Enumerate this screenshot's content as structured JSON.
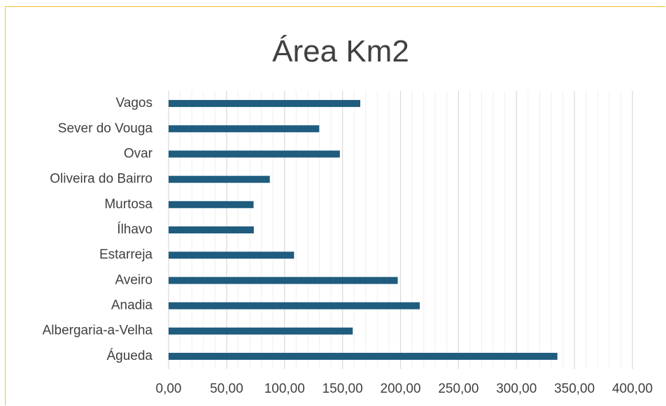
{
  "chart_data": {
    "type": "bar",
    "orientation": "horizontal",
    "title": "Área Km2",
    "categories": [
      "Águeda",
      "Albergaria-a-Velha",
      "Anadia",
      "Aveiro",
      "Estarreja",
      "Ílhavo",
      "Murtosa",
      "Oliveira do Bairro",
      "Ovar",
      "Sever do Vouga",
      "Vagos"
    ],
    "values": [
      335.3,
      158.8,
      216.6,
      197.6,
      108.2,
      73.5,
      73.3,
      87.3,
      147.7,
      129.9,
      165.3
    ],
    "x_ticks": [
      "0,00",
      "50,00",
      "100,00",
      "150,00",
      "200,00",
      "250,00",
      "300,00",
      "350,00",
      "400,00"
    ],
    "xlim": [
      0,
      400
    ],
    "minor_tick_step": 10,
    "major_tick_step": 50,
    "grid": true,
    "legend": "none",
    "bar_color": "#1F5C7E",
    "major_grid_color": "#D9D9D9",
    "minor_grid_color": "#EFEFEF",
    "border_color": "#F2C12E"
  }
}
